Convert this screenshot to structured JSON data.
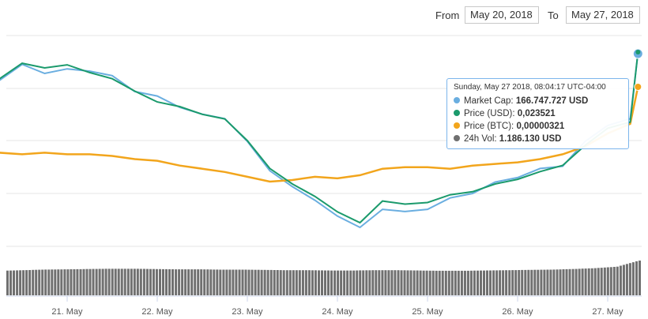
{
  "range_selector": {
    "from_label": "From",
    "from_value": "May 20, 2018",
    "to_label": "To",
    "to_value": "May 27, 2018"
  },
  "tooltip": {
    "title": "Sunday, May 27 2018, 08:04:17 UTC-04:00",
    "rows": [
      {
        "label": "Market Cap:",
        "value": "166.747.727 USD",
        "color": "#6aaee0"
      },
      {
        "label": "Price (USD):",
        "value": "0,023521",
        "color": "#1b9a6c"
      },
      {
        "label": "Price (BTC):",
        "value": "0,00000321",
        "color": "#f2a51c"
      },
      {
        "label": "24h Vol:",
        "value": "1.186.130 USD",
        "color": "#707070"
      }
    ]
  },
  "chart_data": {
    "type": "line",
    "x": [
      "2018-05-20 00:00",
      "2018-05-20 06:00",
      "2018-05-20 12:00",
      "2018-05-20 18:00",
      "2018-05-21 00:00",
      "2018-05-21 06:00",
      "2018-05-21 12:00",
      "2018-05-21 18:00",
      "2018-05-22 00:00",
      "2018-05-22 06:00",
      "2018-05-22 12:00",
      "2018-05-22 18:00",
      "2018-05-23 00:00",
      "2018-05-23 06:00",
      "2018-05-23 12:00",
      "2018-05-23 18:00",
      "2018-05-24 00:00",
      "2018-05-24 06:00",
      "2018-05-24 12:00",
      "2018-05-24 18:00",
      "2018-05-25 00:00",
      "2018-05-25 06:00",
      "2018-05-25 12:00",
      "2018-05-25 18:00",
      "2018-05-26 00:00",
      "2018-05-26 06:00",
      "2018-05-26 12:00",
      "2018-05-26 18:00",
      "2018-05-27 00:00",
      "2018-05-27 06:00",
      "2018-05-27 08:04"
    ],
    "x_tick_labels": [
      "21. May",
      "22. May",
      "23. May",
      "24. May",
      "25. May",
      "26. May",
      "27. May"
    ],
    "series": [
      {
        "name": "Market Cap",
        "color": "#6aaee0",
        "values": [
          150,
          155,
          162,
          158,
          160,
          159,
          157,
          150,
          148,
          143,
          140,
          138,
          128,
          115,
          108,
          102,
          95,
          90,
          98,
          97,
          98,
          103,
          105,
          110,
          112,
          116,
          117,
          128,
          135,
          138,
          166.7
        ]
      },
      {
        "name": "Price (USD)",
        "color": "#1b9a6c",
        "values": [
          0.021,
          0.0218,
          0.0228,
          0.0225,
          0.0227,
          0.0222,
          0.0218,
          0.021,
          0.0203,
          0.02,
          0.0195,
          0.0192,
          0.0178,
          0.016,
          0.015,
          0.0142,
          0.0132,
          0.0125,
          0.0139,
          0.0137,
          0.0138,
          0.0143,
          0.0145,
          0.015,
          0.0153,
          0.0158,
          0.0162,
          0.0175,
          0.0186,
          0.019,
          0.023521
        ]
      },
      {
        "name": "Price (BTC)",
        "color": "#f2a51c",
        "values": [
          2.8e-06,
          2.8e-06,
          2.79e-06,
          2.8e-06,
          2.79e-06,
          2.79e-06,
          2.78e-06,
          2.76e-06,
          2.75e-06,
          2.72e-06,
          2.7e-06,
          2.68e-06,
          2.65e-06,
          2.62e-06,
          2.63e-06,
          2.65e-06,
          2.64e-06,
          2.66e-06,
          2.7e-06,
          2.71e-06,
          2.71e-06,
          2.7e-06,
          2.72e-06,
          2.73e-06,
          2.74e-06,
          2.76e-06,
          2.79e-06,
          2.84e-06,
          2.92e-06,
          2.98e-06,
          3.21e-06
        ]
      },
      {
        "name": "24h Vol",
        "color": "#707070",
        "values": [
          0.82,
          0.84,
          0.86,
          0.88,
          0.89,
          0.9,
          0.91,
          0.91,
          0.9,
          0.89,
          0.89,
          0.88,
          0.88,
          0.87,
          0.86,
          0.86,
          0.85,
          0.85,
          0.86,
          0.86,
          0.85,
          0.84,
          0.84,
          0.85,
          0.86,
          0.87,
          0.88,
          0.9,
          0.93,
          0.98,
          1.19
        ]
      }
    ]
  }
}
